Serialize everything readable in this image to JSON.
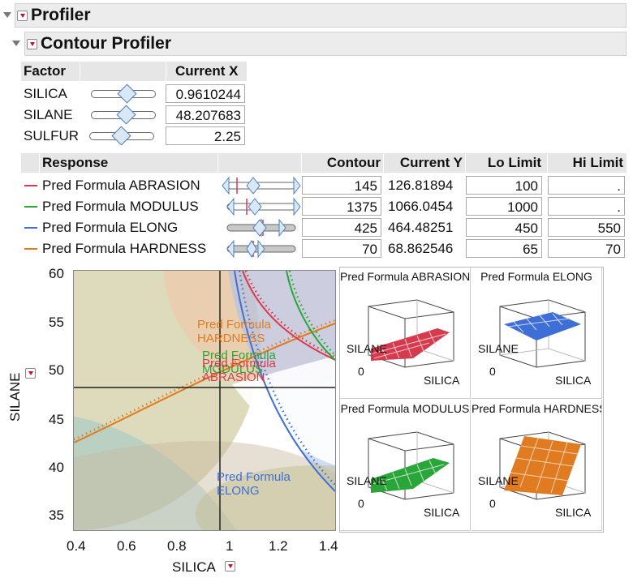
{
  "profiler": {
    "title": "Profiler"
  },
  "contour_profiler": {
    "title": "Contour Profiler"
  },
  "factor_table": {
    "headers": [
      "Factor",
      "Current X"
    ],
    "rows": [
      {
        "name": "SILICA",
        "current_x": "0.9610244",
        "slider": 0.56
      },
      {
        "name": "SILANE",
        "current_x": "48.207683",
        "slider": 0.55
      },
      {
        "name": "SULFUR",
        "current_x": "2.25",
        "slider": 0.5
      }
    ]
  },
  "response_table": {
    "headers": [
      "Response",
      "Contour",
      "Current Y",
      "Lo Limit",
      "Hi Limit"
    ],
    "rows": [
      {
        "name": "Pred Formula ABRASION",
        "color": "#d63b4d",
        "contour": "145",
        "current_y": "126.81894",
        "lo": "100",
        "hi": "."
      },
      {
        "name": "Pred Formula MODULUS",
        "color": "#2aa53a",
        "contour": "1375",
        "current_y": "1066.0454",
        "lo": "1000",
        "hi": "."
      },
      {
        "name": "Pred Formula ELONG",
        "color": "#3e6fd6",
        "contour": "425",
        "current_y": "464.48251",
        "lo": "450",
        "hi": "550"
      },
      {
        "name": "Pred Formula HARDNESS",
        "color": "#e07b22",
        "contour": "70",
        "current_y": "68.862546",
        "lo": "65",
        "hi": "70"
      }
    ]
  },
  "contour_plot": {
    "x_label": "SILICA",
    "y_label": "SILANE",
    "x_ticks": [
      "0.4",
      "0.6",
      "0.8",
      "1",
      "1.2",
      "1.4"
    ],
    "y_ticks": [
      "35",
      "40",
      "45",
      "50",
      "55",
      "60"
    ],
    "curve_labels": {
      "hardness": "Pred Formula HARDNESS",
      "modulus": "Pred Formula MODULUS",
      "abrasion": "Pred Formula ABRASION",
      "elong": "Pred Formula ELONG"
    }
  },
  "surface_plots": [
    {
      "title": "Pred Formula ABRASION",
      "x": "SILICA",
      "y": "SILANE",
      "z0": "0",
      "color": "#d63b4d"
    },
    {
      "title": "Pred Formula ELONG",
      "x": "SILICA",
      "y": "SILANE",
      "z0": "0",
      "color": "#3e6fd6"
    },
    {
      "title": "Pred Formula MODULUS",
      "x": "SILICA",
      "y": "SILANE",
      "z0": "0",
      "color": "#2aa53a"
    },
    {
      "title": "Pred Formula HARDNESS",
      "x": "SILICA",
      "y": "SILANE",
      "z0": "0",
      "color": "#e07b22"
    }
  ]
}
